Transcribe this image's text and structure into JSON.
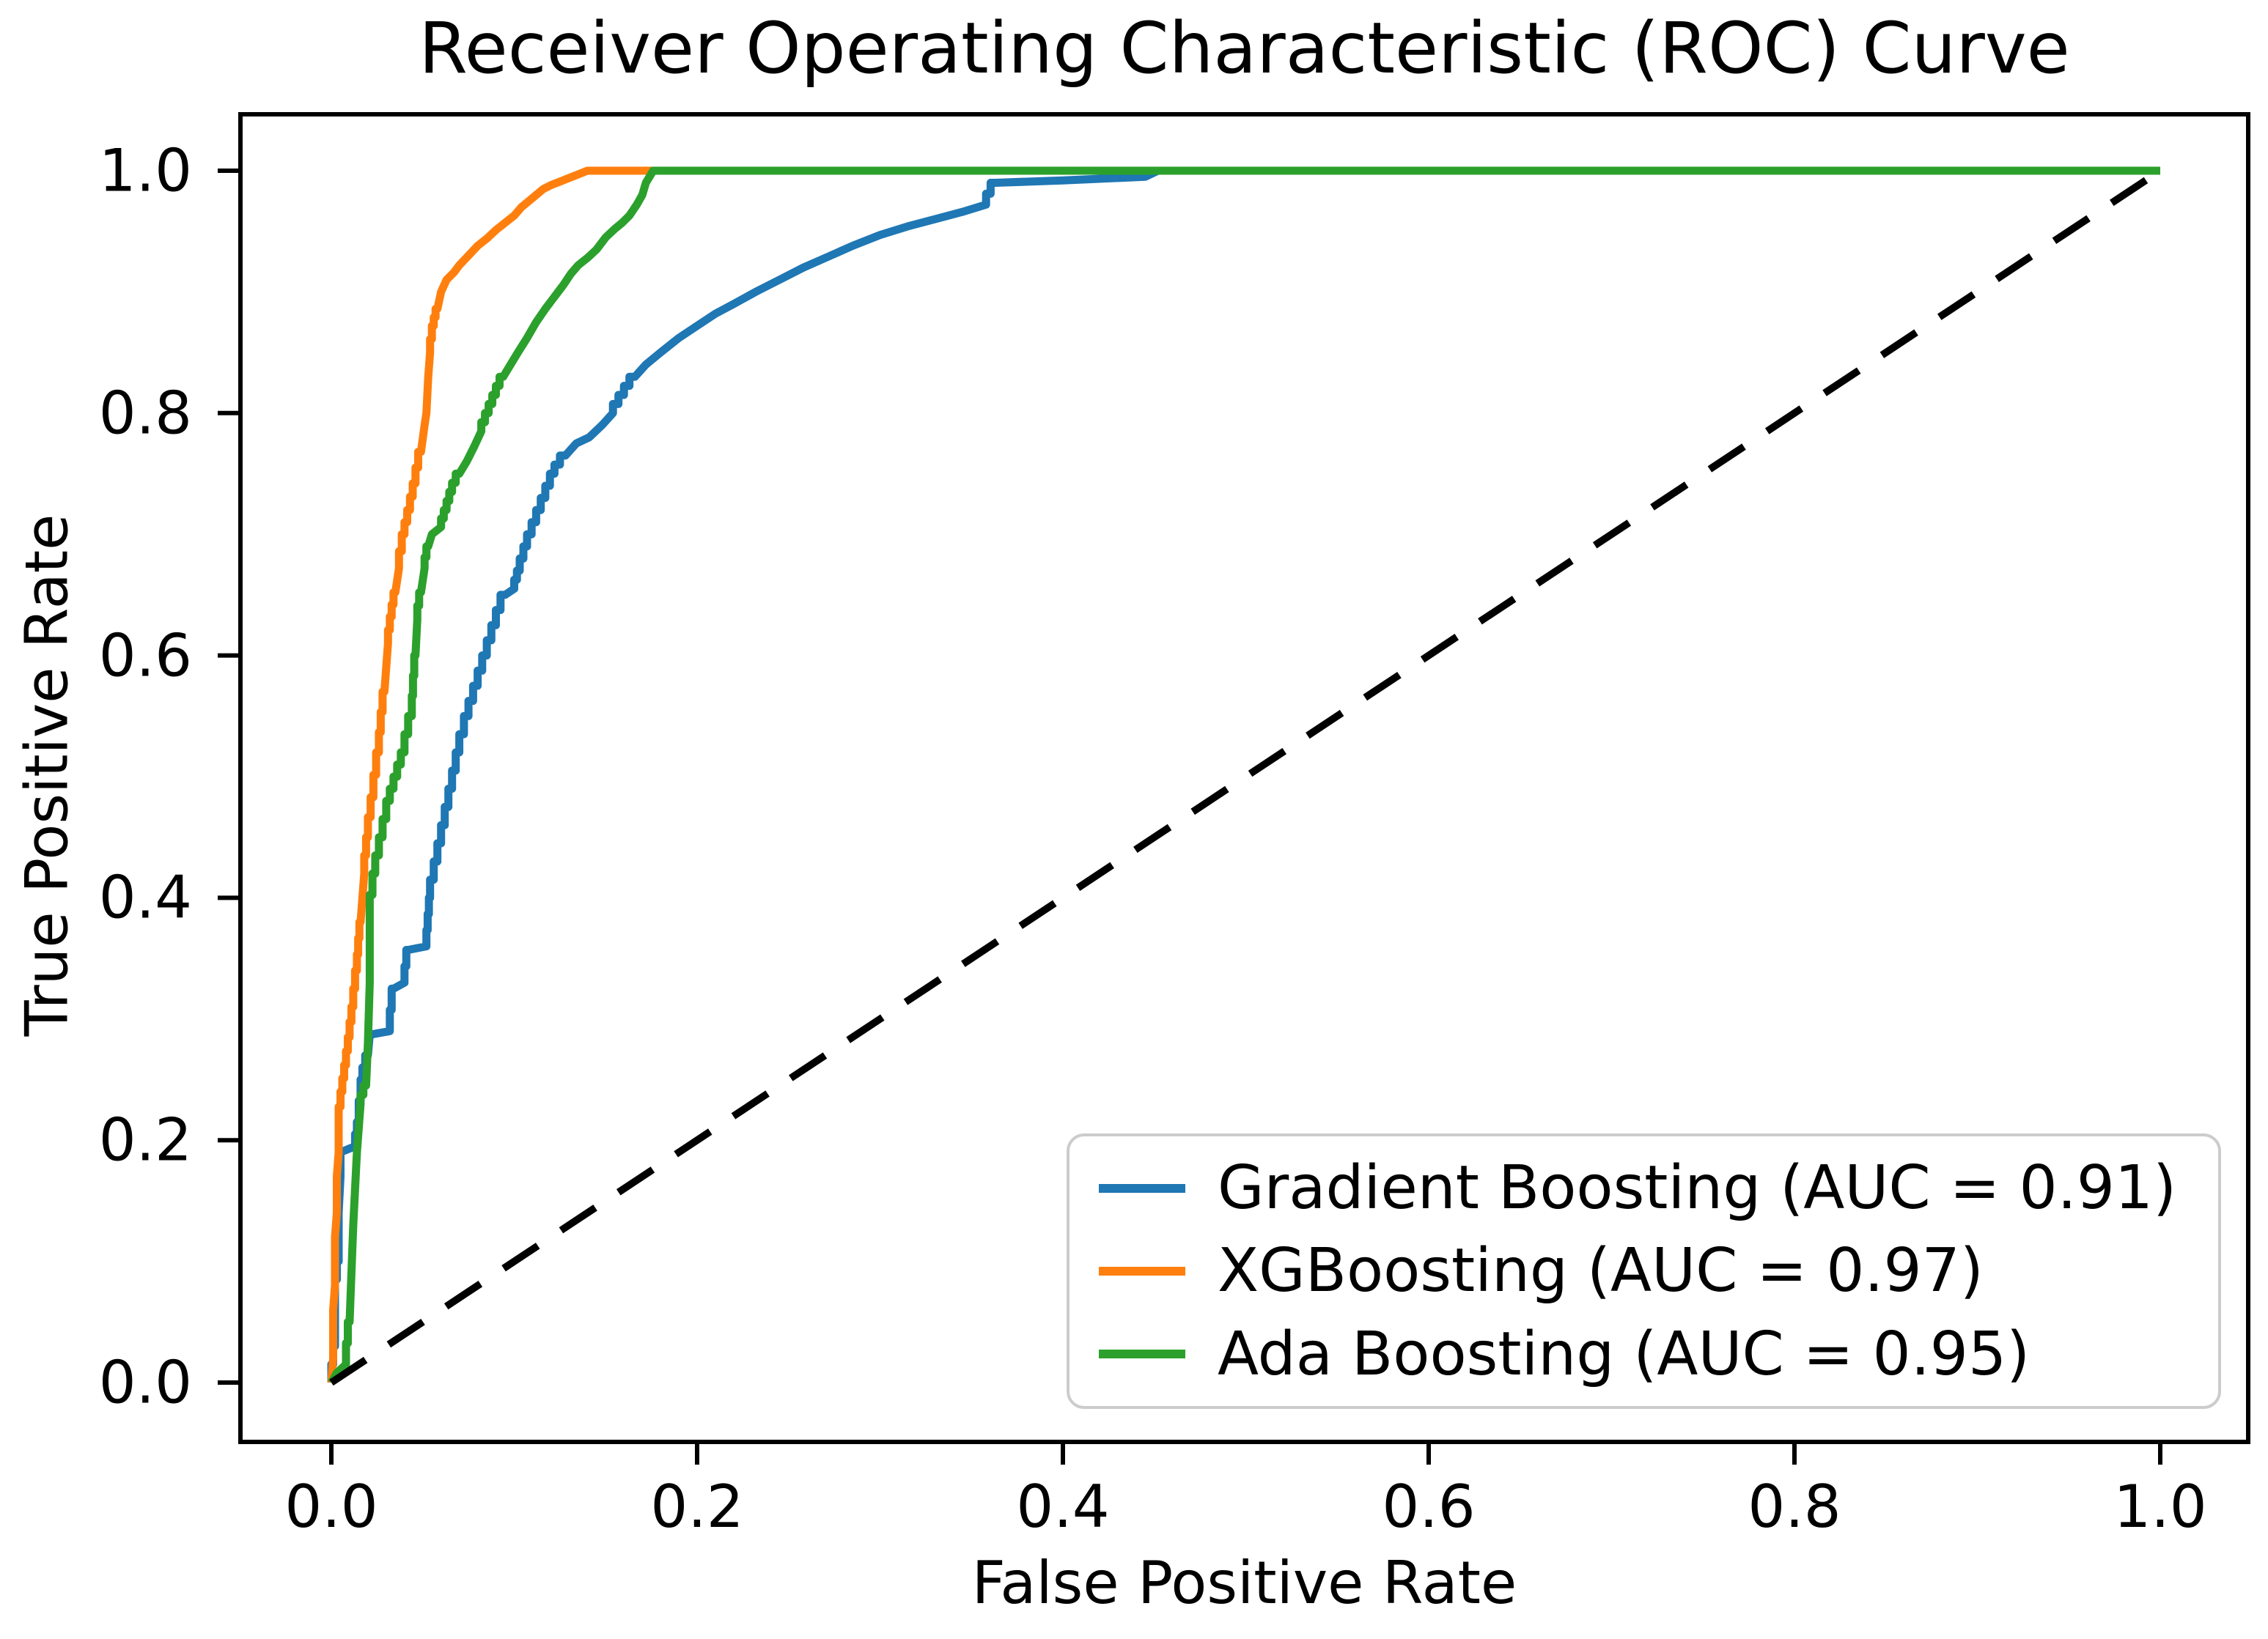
{
  "figure": {
    "title": "Receiver Operating Characteristic (ROC) Curve",
    "x_axis": {
      "label": "False Positive Rate",
      "tick_labels": [
        "0.0",
        "0.2",
        "0.4",
        "0.6",
        "0.8",
        "1.0"
      ],
      "tick_values": [
        0.0,
        0.2,
        0.4,
        0.6,
        0.8,
        1.0
      ]
    },
    "y_axis": {
      "label": "True Positive Rate",
      "tick_labels": [
        "0.0",
        "0.2",
        "0.4",
        "0.6",
        "0.8",
        "1.0"
      ],
      "tick_values": [
        0.0,
        0.2,
        0.4,
        0.6,
        0.8,
        1.0
      ]
    }
  },
  "legend": {
    "entries": [
      {
        "id": "gradient-boosting",
        "label": "Gradient Boosting (AUC = 0.91)",
        "color": "#1f77b4"
      },
      {
        "id": "xgboosting",
        "label": "XGBoosting (AUC = 0.97)",
        "color": "#ff7f0e"
      },
      {
        "id": "ada-boosting",
        "label": "Ada Boosting (AUC = 0.95)",
        "color": "#2ca02c"
      }
    ]
  },
  "colors": {
    "frame": "#000000",
    "tick": "#000000",
    "diagonal": "#000000",
    "legend_border": "#cccccc",
    "background": "#ffffff"
  },
  "chart_data": {
    "type": "line",
    "title": "Receiver Operating Characteristic (ROC) Curve",
    "xlabel": "False Positive Rate",
    "ylabel": "True Positive Rate",
    "xlim": [
      -0.05,
      1.05
    ],
    "ylim": [
      -0.05,
      1.05
    ],
    "grid": false,
    "legend_position": "lower right",
    "reference_line": {
      "style": "dashed",
      "color": "#000000",
      "points": [
        [
          0,
          0
        ],
        [
          1,
          1
        ]
      ]
    },
    "series": [
      {
        "name": "Gradient Boosting",
        "auc": 0.91,
        "color": "#1f77b4",
        "points": [
          [
            0,
            0
          ],
          [
            0.002,
            0.03
          ],
          [
            0.002,
            0.07
          ],
          [
            0.004,
            0.1
          ],
          [
            0.004,
            0.14
          ],
          [
            0.005,
            0.17
          ],
          [
            0.005,
            0.19
          ],
          [
            0.013,
            0.195
          ],
          [
            0.015,
            0.215
          ],
          [
            0.017,
            0.25
          ],
          [
            0.02,
            0.27
          ],
          [
            0.021,
            0.287
          ],
          [
            0.032,
            0.29
          ],
          [
            0.034,
            0.325
          ],
          [
            0.04,
            0.33
          ],
          [
            0.042,
            0.357
          ],
          [
            0.052,
            0.36
          ],
          [
            0.054,
            0.4
          ],
          [
            0.058,
            0.43
          ],
          [
            0.062,
            0.46
          ],
          [
            0.066,
            0.49
          ],
          [
            0.07,
            0.52
          ],
          [
            0.075,
            0.55
          ],
          [
            0.08,
            0.575
          ],
          [
            0.085,
            0.6
          ],
          [
            0.09,
            0.625
          ],
          [
            0.095,
            0.65
          ],
          [
            0.1,
            0.655
          ],
          [
            0.103,
            0.67
          ],
          [
            0.107,
            0.69
          ],
          [
            0.112,
            0.71
          ],
          [
            0.117,
            0.73
          ],
          [
            0.122,
            0.75
          ],
          [
            0.128,
            0.765
          ],
          [
            0.134,
            0.775
          ],
          [
            0.141,
            0.78
          ],
          [
            0.148,
            0.79
          ],
          [
            0.154,
            0.8
          ],
          [
            0.16,
            0.815
          ],
          [
            0.166,
            0.83
          ],
          [
            0.172,
            0.84
          ],
          [
            0.18,
            0.85
          ],
          [
            0.19,
            0.862
          ],
          [
            0.2,
            0.872
          ],
          [
            0.21,
            0.882
          ],
          [
            0.22,
            0.89
          ],
          [
            0.232,
            0.9
          ],
          [
            0.245,
            0.91
          ],
          [
            0.258,
            0.92
          ],
          [
            0.27,
            0.928
          ],
          [
            0.285,
            0.938
          ],
          [
            0.3,
            0.947
          ],
          [
            0.315,
            0.954
          ],
          [
            0.33,
            0.96
          ],
          [
            0.345,
            0.966
          ],
          [
            0.358,
            0.972
          ],
          [
            0.363,
            0.99
          ],
          [
            0.4,
            0.992
          ],
          [
            0.445,
            0.995
          ],
          [
            0.452,
            1.0
          ],
          [
            1,
            1
          ]
        ]
      },
      {
        "name": "XGBoosting",
        "auc": 0.97,
        "color": "#ff7f0e",
        "points": [
          [
            0,
            0
          ],
          [
            0.001,
            0.02
          ],
          [
            0.001,
            0.06
          ],
          [
            0.002,
            0.08
          ],
          [
            0.002,
            0.12
          ],
          [
            0.003,
            0.14
          ],
          [
            0.003,
            0.17
          ],
          [
            0.004,
            0.19
          ],
          [
            0.004,
            0.215
          ],
          [
            0.006,
            0.24
          ],
          [
            0.008,
            0.262
          ],
          [
            0.01,
            0.285
          ],
          [
            0.012,
            0.31
          ],
          [
            0.014,
            0.34
          ],
          [
            0.016,
            0.38
          ],
          [
            0.018,
            0.42
          ],
          [
            0.02,
            0.45
          ],
          [
            0.023,
            0.483
          ],
          [
            0.026,
            0.52
          ],
          [
            0.029,
            0.57
          ],
          [
            0.031,
            0.61
          ],
          [
            0.033,
            0.632
          ],
          [
            0.035,
            0.652
          ],
          [
            0.037,
            0.672
          ],
          [
            0.04,
            0.7
          ],
          [
            0.043,
            0.72
          ],
          [
            0.046,
            0.742
          ],
          [
            0.049,
            0.768
          ],
          [
            0.051,
            0.79
          ],
          [
            0.052,
            0.8
          ],
          [
            0.053,
            0.83
          ],
          [
            0.054,
            0.85
          ],
          [
            0.056,
            0.872
          ],
          [
            0.058,
            0.886
          ],
          [
            0.06,
            0.9
          ],
          [
            0.063,
            0.91
          ],
          [
            0.067,
            0.916
          ],
          [
            0.07,
            0.922
          ],
          [
            0.075,
            0.93
          ],
          [
            0.08,
            0.938
          ],
          [
            0.085,
            0.944
          ],
          [
            0.09,
            0.951
          ],
          [
            0.095,
            0.957
          ],
          [
            0.1,
            0.963
          ],
          [
            0.104,
            0.97
          ],
          [
            0.108,
            0.975
          ],
          [
            0.112,
            0.98
          ],
          [
            0.116,
            0.985
          ],
          [
            0.12,
            0.988
          ],
          [
            0.125,
            0.991
          ],
          [
            0.13,
            0.994
          ],
          [
            0.135,
            0.997
          ],
          [
            0.14,
            1.0
          ],
          [
            1,
            1
          ]
        ]
      },
      {
        "name": "Ada Boosting",
        "auc": 0.95,
        "color": "#2ca02c",
        "points": [
          [
            0,
            0
          ],
          [
            0.003,
            0.008
          ],
          [
            0.008,
            0.015
          ],
          [
            0.01,
            0.05
          ],
          [
            0.011,
            0.09
          ],
          [
            0.012,
            0.13
          ],
          [
            0.013,
            0.16
          ],
          [
            0.014,
            0.19
          ],
          [
            0.015,
            0.21
          ],
          [
            0.016,
            0.23
          ],
          [
            0.019,
            0.245
          ],
          [
            0.02,
            0.28
          ],
          [
            0.021,
            0.33
          ],
          [
            0.021,
            0.385
          ],
          [
            0.024,
            0.42
          ],
          [
            0.028,
            0.45
          ],
          [
            0.032,
            0.48
          ],
          [
            0.036,
            0.5
          ],
          [
            0.04,
            0.52
          ],
          [
            0.044,
            0.55
          ],
          [
            0.046,
            0.6
          ],
          [
            0.047,
            0.63
          ],
          [
            0.049,
            0.652
          ],
          [
            0.051,
            0.672
          ],
          [
            0.053,
            0.69
          ],
          [
            0.055,
            0.7
          ],
          [
            0.06,
            0.706
          ],
          [
            0.063,
            0.72
          ],
          [
            0.066,
            0.735
          ],
          [
            0.07,
            0.75
          ],
          [
            0.074,
            0.76
          ],
          [
            0.078,
            0.772
          ],
          [
            0.082,
            0.785
          ],
          [
            0.086,
            0.8
          ],
          [
            0.09,
            0.815
          ],
          [
            0.094,
            0.83
          ],
          [
            0.098,
            0.84
          ],
          [
            0.102,
            0.85
          ],
          [
            0.107,
            0.862
          ],
          [
            0.112,
            0.875
          ],
          [
            0.117,
            0.886
          ],
          [
            0.122,
            0.896
          ],
          [
            0.127,
            0.906
          ],
          [
            0.131,
            0.915
          ],
          [
            0.135,
            0.922
          ],
          [
            0.14,
            0.928
          ],
          [
            0.145,
            0.935
          ],
          [
            0.15,
            0.945
          ],
          [
            0.155,
            0.952
          ],
          [
            0.159,
            0.957
          ],
          [
            0.163,
            0.963
          ],
          [
            0.167,
            0.972
          ],
          [
            0.17,
            0.98
          ],
          [
            0.172,
            0.99
          ],
          [
            0.176,
            1.0
          ],
          [
            1,
            1
          ]
        ]
      }
    ]
  }
}
